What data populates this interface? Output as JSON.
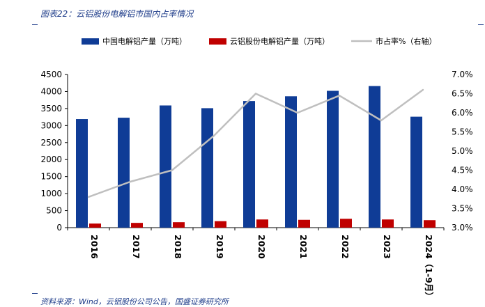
{
  "figure": {
    "title": "图表22：云铝股份电解铝市国内占率情况",
    "source": "资料来源：Wind，云铝股份公司公告，国盛证券研究所"
  },
  "colors": {
    "china_bar": "#0f3c96",
    "yunlv_bar": "#c00000",
    "share_line": "#bfbfbf",
    "axis": "#000000"
  },
  "chart_data": {
    "type": "bar",
    "categories": [
      "2016",
      "2017",
      "2018",
      "2019",
      "2020",
      "2021",
      "2022",
      "2023",
      "2024（1-9月）"
    ],
    "series": [
      {
        "name": "中国电解铝产量（万吨）",
        "type": "bar",
        "axis": "left",
        "values": [
          3190,
          3230,
          3590,
          3510,
          3720,
          3860,
          4020,
          4160,
          3260
        ]
      },
      {
        "name": "云铝股份电解铝产量（万吨）",
        "type": "bar",
        "axis": "left",
        "values": [
          120,
          140,
          160,
          190,
          240,
          230,
          260,
          240,
          220
        ]
      },
      {
        "name": "市占率%（右轴）",
        "type": "line",
        "axis": "right",
        "values": [
          3.8,
          4.2,
          4.5,
          5.4,
          6.5,
          6.0,
          6.45,
          5.8,
          6.6
        ]
      }
    ],
    "y_left": {
      "min": 0,
      "max": 4500,
      "step": 500,
      "tick_labels": [
        "0",
        "500",
        "1000",
        "1500",
        "2000",
        "2500",
        "3000",
        "3500",
        "4000",
        "4500"
      ]
    },
    "y_right": {
      "min": 3.0,
      "max": 7.0,
      "step": 0.5,
      "tick_labels": [
        "3.0%",
        "3.5%",
        "4.0%",
        "4.5%",
        "5.0%",
        "5.5%",
        "6.0%",
        "6.5%",
        "7.0%"
      ]
    },
    "legend_position": "top",
    "grid": false
  }
}
